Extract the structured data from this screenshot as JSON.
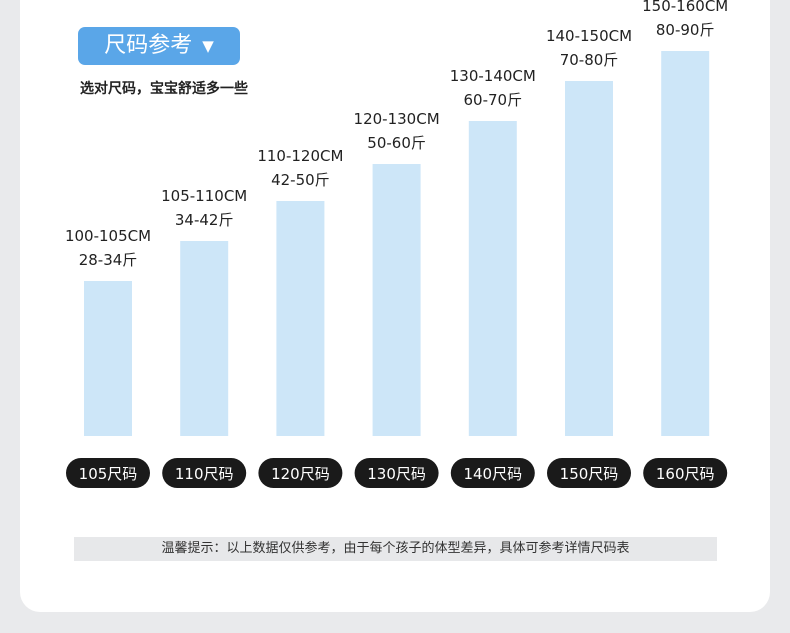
{
  "header": {
    "title": "尺码参考",
    "dropdown_icon": "triangle-down-icon"
  },
  "subtitle": "选对尺码，宝宝舒适多一些",
  "tip": "温馨提示：以上数据仅供参考，由于每个孩子的体型差异，具体可参考详情尺码表",
  "colors": {
    "bar": "#cde6f8",
    "pill": "#5aa6e8",
    "size_pill": "#1a1a1a"
  },
  "chart_data": {
    "type": "bar",
    "categories": [
      "105尺码",
      "110尺码",
      "120尺码",
      "130尺码",
      "140尺码",
      "150尺码",
      "160尺码"
    ],
    "values": [
      155,
      195,
      235,
      272,
      315,
      355,
      385
    ],
    "height_labels": [
      "100-105CM",
      "105-110CM",
      "110-120CM",
      "120-130CM",
      "130-140CM",
      "140-150CM",
      "150-160CM"
    ],
    "weight_labels": [
      "28-34斤",
      "34-42斤",
      "42-50斤",
      "50-60斤",
      "60-70斤",
      "70-80斤",
      "80-90斤"
    ],
    "ylim": [
      0,
      400
    ],
    "grid": false,
    "legend": "none"
  }
}
